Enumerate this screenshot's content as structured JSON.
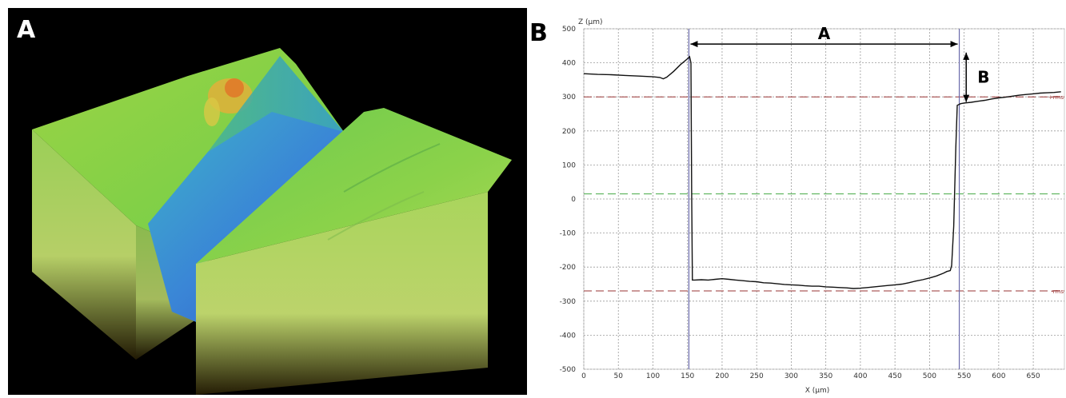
{
  "panel_a": {
    "letter": "A"
  },
  "panel_b": {
    "letter": "B"
  },
  "chart_data": {
    "type": "line",
    "xlabel": "X (µm)",
    "ylabel": "Z (µm)",
    "xlim": [
      0,
      695
    ],
    "ylim": [
      -500,
      500
    ],
    "x_ticks": [
      0,
      50,
      100,
      150,
      200,
      250,
      300,
      350,
      400,
      450,
      500,
      550,
      600,
      650
    ],
    "y_ticks": [
      -500,
      -400,
      -300,
      -200,
      -100,
      0,
      100,
      200,
      300,
      400,
      500
    ],
    "grid": true,
    "series": [
      {
        "x": [
          0,
          20,
          40,
          60,
          80,
          100,
          110,
          115,
          120,
          130,
          140,
          150,
          153,
          155,
          156,
          157,
          160,
          170,
          180,
          190,
          200,
          210,
          220,
          230,
          240,
          250,
          260,
          270,
          280,
          290,
          300,
          310,
          320,
          330,
          340,
          350,
          360,
          370,
          380,
          390,
          400,
          410,
          420,
          430,
          440,
          450,
          460,
          470,
          480,
          490,
          500,
          510,
          520,
          525,
          530,
          532,
          535,
          538,
          540,
          545,
          550,
          560,
          570,
          580,
          590,
          600,
          610,
          620,
          630,
          640,
          650,
          660,
          670,
          680,
          690
        ],
        "y": [
          368,
          366,
          365,
          363,
          361,
          359,
          357,
          353,
          358,
          375,
          395,
          412,
          418,
          400,
          20,
          -238,
          -238,
          -237,
          -238,
          -236,
          -234,
          -236,
          -238,
          -240,
          -242,
          -243,
          -246,
          -247,
          -249,
          -251,
          -252,
          -253,
          -255,
          -256,
          -256,
          -258,
          -259,
          -260,
          -261,
          -263,
          -262,
          -260,
          -258,
          -256,
          -254,
          -252,
          -250,
          -246,
          -241,
          -237,
          -232,
          -226,
          -218,
          -213,
          -210,
          -195,
          -80,
          150,
          275,
          280,
          282,
          284,
          287,
          290,
          294,
          297,
          299,
          302,
          305,
          307,
          309,
          311,
          312,
          313,
          315
        ]
      }
    ],
    "reference_lines": [
      {
        "label": "+rms",
        "y": 300,
        "color": "#993333",
        "style": "dashed"
      },
      {
        "label": "-rms",
        "y": -270,
        "color": "#993333",
        "style": "dashed"
      },
      {
        "y": 15,
        "color": "#44aa44",
        "style": "dashed"
      }
    ],
    "vertical_markers": [
      152,
      543
    ],
    "annotations": [
      {
        "text": "A",
        "type": "horizontal-arrow",
        "x1": 152,
        "x2": 543,
        "y": 455
      },
      {
        "text": "B",
        "type": "vertical-arrow",
        "x": 553,
        "y1": 430,
        "y2": 285
      }
    ],
    "colors": {
      "line": "#111111",
      "grid": "#9a9a9a",
      "marker": "#6a6aaa",
      "rms": "#993333",
      "zero": "#44aa44"
    }
  }
}
